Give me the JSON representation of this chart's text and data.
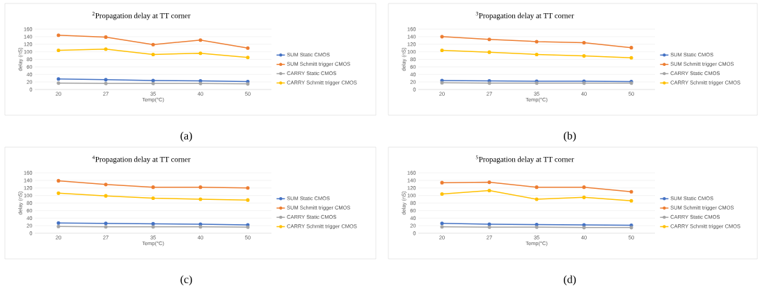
{
  "chart_data": [
    {
      "type": "line",
      "title": "$^{2}$Propagation delay at TT corner",
      "xlabel": "Temp(°C)",
      "ylabel": "delay (nS)",
      "categories": [
        "20",
        "27",
        "35",
        "40",
        "50"
      ],
      "series": [
        {
          "name": "SUM Static CMOS",
          "color": "#4472c4",
          "values": [
            28,
            26,
            24,
            23,
            21
          ]
        },
        {
          "name": "SUM Schmitt trigger CMOS",
          "color": "#ed7d31",
          "values": [
            144,
            139,
            119,
            131,
            110
          ]
        },
        {
          "name": "CARRY Static CMOS",
          "color": "#a5a5a5",
          "values": [
            17,
            16,
            16,
            16,
            15
          ]
        },
        {
          "name": "CARRY Schmitt trigger CMOS",
          "color": "#ffc000",
          "values": [
            104,
            107,
            93,
            96,
            85
          ]
        }
      ],
      "ylim": [
        0,
        160
      ],
      "yticks": [
        0,
        20,
        40,
        60,
        80,
        100,
        120,
        140,
        160
      ],
      "grid": "y",
      "legend": "right",
      "marker": "circle",
      "line_style": "solid",
      "annotations": [
        "(a)"
      ]
    },
    {
      "type": "line",
      "title": "$^{3}$Propagation delay at TT corner",
      "xlabel": "Temp(°C)",
      "ylabel": "delay (nS)",
      "categories": [
        "20",
        "27",
        "35",
        "40",
        "50"
      ],
      "series": [
        {
          "name": "SUM Static CMOS",
          "color": "#4472c4",
          "values": [
            24,
            23,
            22,
            22,
            21
          ]
        },
        {
          "name": "SUM Schmitt trigger CMOS",
          "color": "#ed7d31",
          "values": [
            140,
            133,
            127,
            124,
            111
          ]
        },
        {
          "name": "CARRY Static CMOS",
          "color": "#a5a5a5",
          "values": [
            18,
            17,
            17,
            17,
            17
          ]
        },
        {
          "name": "CARRY Schmitt trigger CMOS",
          "color": "#ffc000",
          "values": [
            104,
            99,
            93,
            89,
            84
          ]
        }
      ],
      "ylim": [
        0,
        160
      ],
      "yticks": [
        0,
        20,
        40,
        60,
        80,
        100,
        120,
        140,
        160
      ],
      "grid": "y",
      "legend": "right",
      "marker": "circle",
      "line_style": "solid",
      "annotations": [
        "(b)"
      ]
    },
    {
      "type": "line",
      "title": "$^{4}$Propagation delay at TT corner",
      "xlabel": "Temp(°C)",
      "ylabel": "delay (nS)",
      "categories": [
        "20",
        "27",
        "35",
        "40",
        "50"
      ],
      "series": [
        {
          "name": "SUM Static CMOS",
          "color": "#4472c4",
          "values": [
            27,
            26,
            25,
            24,
            22
          ]
        },
        {
          "name": "SUM Schmitt trigger CMOS",
          "color": "#ed7d31",
          "values": [
            139,
            129,
            122,
            122,
            120
          ]
        },
        {
          "name": "CARRY Static CMOS",
          "color": "#a5a5a5",
          "values": [
            18,
            17,
            17,
            17,
            16
          ]
        },
        {
          "name": "CARRY Schmitt trigger CMOS",
          "color": "#ffc000",
          "values": [
            106,
            99,
            93,
            90,
            88
          ]
        }
      ],
      "ylim": [
        0,
        160
      ],
      "yticks": [
        0,
        20,
        40,
        60,
        80,
        100,
        120,
        140,
        160
      ],
      "grid": "y",
      "legend": "right",
      "marker": "circle",
      "line_style": "solid",
      "annotations": [
        "(c)"
      ]
    },
    {
      "type": "line",
      "title": "$^{5}$Propagation delay at TT corner",
      "xlabel": "Temp(°C)",
      "ylabel": "delay (nS)",
      "categories": [
        "20",
        "27",
        "35",
        "40",
        "50"
      ],
      "series": [
        {
          "name": "SUM Static CMOS",
          "color": "#4472c4",
          "values": [
            26,
            24,
            23,
            22,
            21
          ]
        },
        {
          "name": "SUM Schmitt trigger CMOS",
          "color": "#ed7d31",
          "values": [
            134,
            135,
            122,
            122,
            110
          ]
        },
        {
          "name": "CARRY Static CMOS",
          "color": "#a5a5a5",
          "values": [
            17,
            16,
            16,
            15,
            15
          ]
        },
        {
          "name": "CARRY Schmitt trigger CMOS",
          "color": "#ffc000",
          "values": [
            104,
            113,
            90,
            95,
            86
          ]
        }
      ],
      "ylim": [
        0,
        160
      ],
      "yticks": [
        0,
        20,
        40,
        60,
        80,
        100,
        120,
        140,
        160
      ],
      "grid": "y",
      "legend": "right",
      "marker": "circle",
      "line_style": "solid",
      "annotations": [
        "(d)"
      ]
    }
  ]
}
